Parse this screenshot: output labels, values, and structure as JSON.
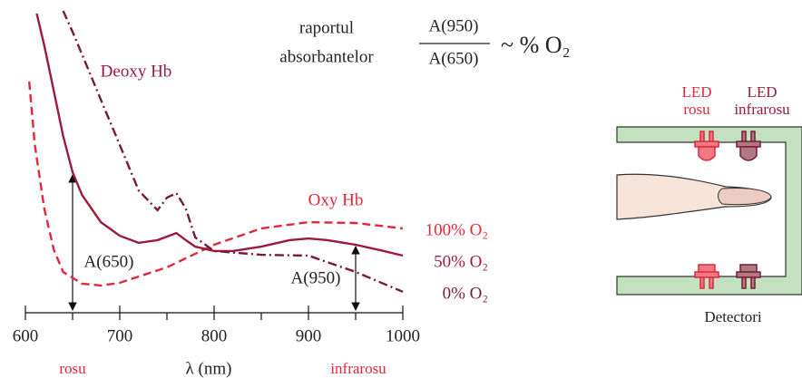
{
  "chart_data": {
    "type": "line",
    "xlim": [
      600,
      1000
    ],
    "xticks": [
      600,
      700,
      800,
      900,
      1000
    ],
    "xminor": [
      650,
      750,
      850,
      950
    ],
    "ylim": [
      0,
      11
    ],
    "xlabel": "λ (nm)",
    "series": [
      {
        "name": "100% O₂",
        "color": "#e0283c",
        "style": "dashed",
        "x": [
          604,
          610,
          620,
          630,
          640,
          660,
          680,
          700,
          720,
          750,
          800,
          850,
          900,
          950,
          1000
        ],
        "values": [
          8.5,
          6.17,
          3.83,
          2.33,
          1.5,
          1.07,
          1.0,
          1.1,
          1.33,
          1.67,
          2.5,
          3.1,
          3.33,
          3.3,
          3.1
        ]
      },
      {
        "name": "50% O₂",
        "color": "#9b1b3a",
        "style": "solid",
        "x": [
          612,
          620,
          630,
          640,
          650,
          660,
          680,
          700,
          720,
          740,
          760,
          770,
          780,
          800,
          820,
          850,
          880,
          900,
          920,
          950,
          980,
          1000
        ],
        "values": [
          11.0,
          9.83,
          8.17,
          6.5,
          5.17,
          4.33,
          3.33,
          2.83,
          2.57,
          2.67,
          2.93,
          2.67,
          2.43,
          2.27,
          2.27,
          2.43,
          2.67,
          2.73,
          2.67,
          2.5,
          2.27,
          2.1
        ]
      },
      {
        "name": "0% O₂",
        "color": "#7a1b35",
        "style": "dashdot",
        "x": [
          640,
          650,
          660,
          680,
          700,
          720,
          740,
          750,
          760,
          770,
          780,
          800,
          850,
          900,
          950,
          1000
        ],
        "values": [
          11.1,
          10.33,
          9.5,
          7.83,
          6.17,
          4.5,
          3.77,
          4.23,
          4.4,
          3.83,
          2.77,
          2.27,
          2.13,
          2.1,
          1.5,
          0.77
        ]
      }
    ],
    "annotations": {
      "deoxy": "Deoxy Hb",
      "oxy": "Oxy Hb",
      "a650": "A(650)",
      "a950": "A(950)",
      "red": "rosu",
      "ir": "infrarosu"
    },
    "formula": {
      "line1": "raportul",
      "line2": "absorbantelor",
      "numerator": "A(950)",
      "denominator": "A(650)",
      "relation": "~ % O₂"
    }
  },
  "sensor": {
    "led_red": [
      "LED",
      "rosu"
    ],
    "led_ir": [
      "LED",
      "infrarosu"
    ],
    "detectors": "Detectori"
  }
}
